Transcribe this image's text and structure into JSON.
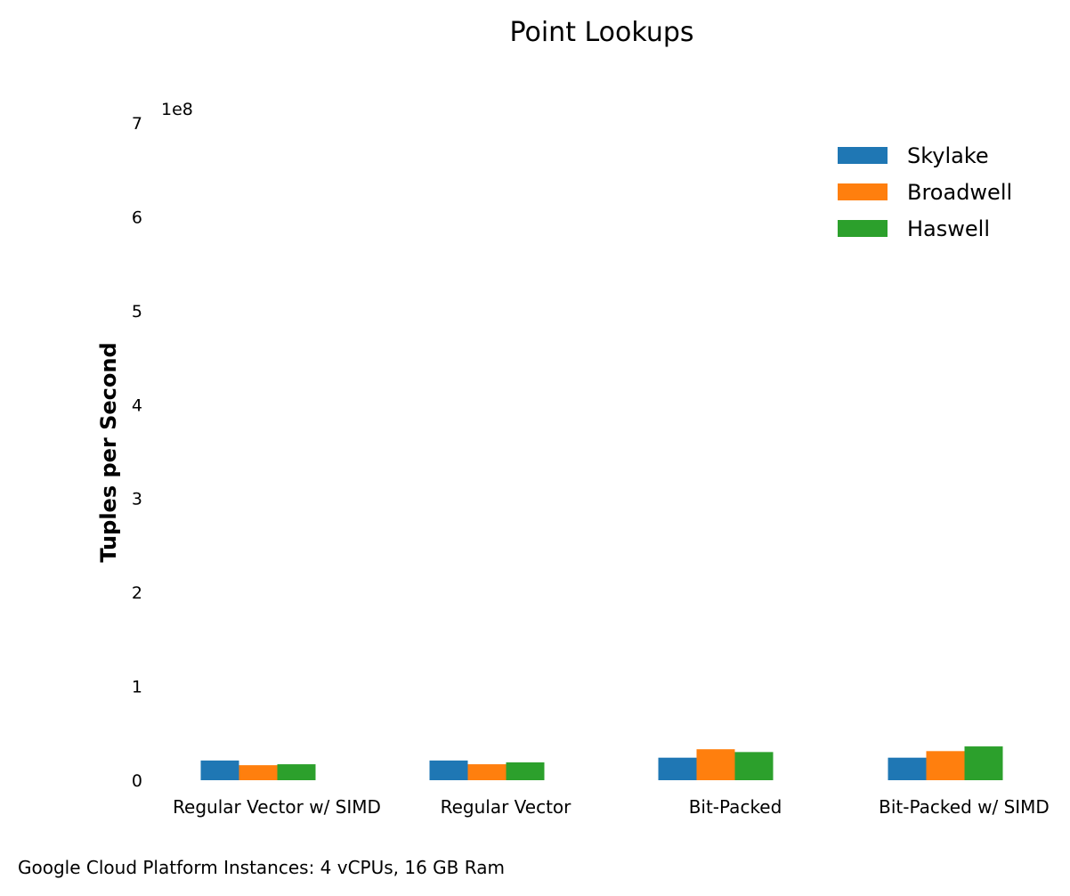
{
  "chart_data": {
    "type": "bar",
    "title": "Point Lookups",
    "xlabel": "",
    "ylabel": "Tuples per Second",
    "y_scale_label": "1e8",
    "ylim": [
      0,
      7
    ],
    "yticks": [
      "0",
      "1",
      "2",
      "3",
      "4",
      "5",
      "6",
      "7"
    ],
    "categories": [
      "Regular Vector w/ SIMD",
      "Regular Vector",
      "Bit-Packed",
      "Bit-Packed w/ SIMD"
    ],
    "series": [
      {
        "name": "Skylake",
        "color": "#1f77b4",
        "values": [
          0.21,
          0.21,
          0.24,
          0.24
        ]
      },
      {
        "name": "Broadwell",
        "color": "#ff7f0e",
        "values": [
          0.16,
          0.17,
          0.33,
          0.31
        ]
      },
      {
        "name": "Haswell",
        "color": "#2ca02c",
        "values": [
          0.17,
          0.19,
          0.3,
          0.36
        ]
      }
    ],
    "legend_position": "top-right",
    "grid": false
  },
  "footnote": "Google Cloud Platform Instances: 4 vCPUs, 16 GB Ram"
}
